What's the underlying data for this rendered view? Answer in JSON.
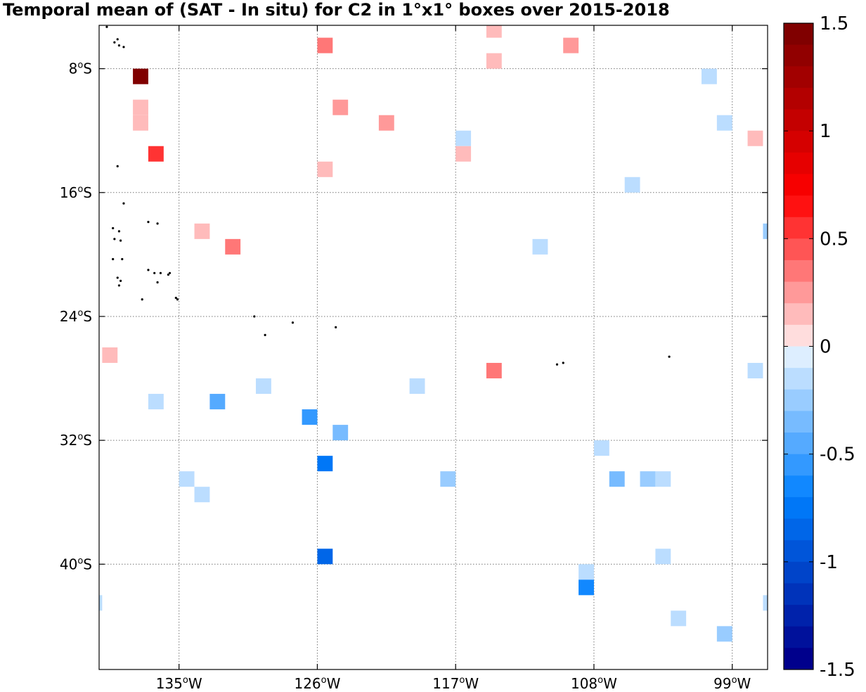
{
  "chart_data": {
    "type": "heatmap",
    "title": "Temporal mean of (SAT - In situ) for C2 in 1°x1° boxes over 2015-2018",
    "x_ticks": [
      {
        "value": -135,
        "label": "135",
        "suffix": "W"
      },
      {
        "value": -126,
        "label": "126",
        "suffix": "W"
      },
      {
        "value": -117,
        "label": "117",
        "suffix": "W"
      },
      {
        "value": -108,
        "label": "108",
        "suffix": "W"
      },
      {
        "value": -99,
        "label": "99",
        "suffix": "W"
      }
    ],
    "y_ticks": [
      {
        "value": -8,
        "label": "8",
        "suffix": "S"
      },
      {
        "value": -16,
        "label": "16",
        "suffix": "S"
      },
      {
        "value": -24,
        "label": "24",
        "suffix": "S"
      },
      {
        "value": -32,
        "label": "32",
        "suffix": "S"
      },
      {
        "value": -40,
        "label": "40",
        "suffix": "S"
      }
    ],
    "xlim": [
      -140.2,
      -96.7
    ],
    "ylim": [
      -46.8,
      -5.2
    ],
    "grid": true,
    "colorbar": {
      "min": -1.5,
      "max": 1.5,
      "step": 0.1,
      "tick_values": [
        1.5,
        1,
        0.5,
        0,
        -0.5,
        -1,
        -1.5
      ],
      "tick_labels": [
        "1.5",
        "1",
        "0.5",
        "0",
        "-0.5",
        "-1",
        "-1.5"
      ]
    },
    "cells": [
      {
        "lon": -114.5,
        "lat": -5.5,
        "value": 0.15
      },
      {
        "lon": -125.5,
        "lat": -6.5,
        "value": 0.35
      },
      {
        "lon": -109.5,
        "lat": -6.5,
        "value": 0.25
      },
      {
        "lon": -114.5,
        "lat": -7.5,
        "value": 0.15
      },
      {
        "lon": -137.5,
        "lat": -8.5,
        "value": 1.5
      },
      {
        "lon": -100.5,
        "lat": -8.5,
        "value": -0.15
      },
      {
        "lon": -137.5,
        "lat": -10.5,
        "value": 0.15
      },
      {
        "lon": -124.5,
        "lat": -10.5,
        "value": 0.25
      },
      {
        "lon": -137.5,
        "lat": -11.5,
        "value": 0.15
      },
      {
        "lon": -121.5,
        "lat": -11.5,
        "value": 0.25
      },
      {
        "lon": -99.5,
        "lat": -11.5,
        "value": -0.2
      },
      {
        "lon": -116.5,
        "lat": -12.5,
        "value": -0.15
      },
      {
        "lon": -97.5,
        "lat": -12.5,
        "value": 0.2
      },
      {
        "lon": -136.5,
        "lat": -13.5,
        "value": 0.55
      },
      {
        "lon": -116.5,
        "lat": -13.5,
        "value": 0.2
      },
      {
        "lon": -125.5,
        "lat": -14.5,
        "value": 0.15
      },
      {
        "lon": -105.5,
        "lat": -15.5,
        "value": -0.15
      },
      {
        "lon": -96.5,
        "lat": -18.5,
        "value": -0.25
      },
      {
        "lon": -133.5,
        "lat": -18.5,
        "value": 0.2
      },
      {
        "lon": -131.5,
        "lat": -19.5,
        "value": 0.35
      },
      {
        "lon": -111.5,
        "lat": -19.5,
        "value": -0.15
      },
      {
        "lon": -139.5,
        "lat": -26.5,
        "value": 0.2
      },
      {
        "lon": -97.5,
        "lat": -27.5,
        "value": -0.15
      },
      {
        "lon": -114.5,
        "lat": -27.5,
        "value": 0.35
      },
      {
        "lon": -129.5,
        "lat": -28.5,
        "value": -0.15
      },
      {
        "lon": -119.5,
        "lat": -28.5,
        "value": -0.15
      },
      {
        "lon": -136.5,
        "lat": -29.5,
        "value": -0.15
      },
      {
        "lon": -132.5,
        "lat": -29.5,
        "value": -0.45
      },
      {
        "lon": -126.5,
        "lat": -30.5,
        "value": -0.55
      },
      {
        "lon": -124.5,
        "lat": -31.5,
        "value": -0.4
      },
      {
        "lon": -107.5,
        "lat": -32.5,
        "value": -0.15
      },
      {
        "lon": -125.5,
        "lat": -33.5,
        "value": -0.75
      },
      {
        "lon": -134.5,
        "lat": -34.5,
        "value": -0.15
      },
      {
        "lon": -117.5,
        "lat": -34.5,
        "value": -0.3
      },
      {
        "lon": -106.5,
        "lat": -34.5,
        "value": -0.35
      },
      {
        "lon": -104.5,
        "lat": -34.5,
        "value": -0.3
      },
      {
        "lon": -103.5,
        "lat": -34.5,
        "value": -0.15
      },
      {
        "lon": -133.5,
        "lat": -35.5,
        "value": -0.15
      },
      {
        "lon": -125.5,
        "lat": -39.5,
        "value": -0.85
      },
      {
        "lon": -103.5,
        "lat": -39.5,
        "value": -0.15
      },
      {
        "lon": -108.5,
        "lat": -40.5,
        "value": -0.15
      },
      {
        "lon": -108.5,
        "lat": -41.5,
        "value": -0.65
      },
      {
        "lon": -140.5,
        "lat": -42.5,
        "value": -0.15
      },
      {
        "lon": -96.5,
        "lat": -42.5,
        "value": -0.15
      },
      {
        "lon": -102.5,
        "lat": -43.5,
        "value": -0.15
      },
      {
        "lon": -99.5,
        "lat": -44.5,
        "value": -0.3
      }
    ],
    "islands": [
      [
        -139.7,
        -5.3
      ],
      [
        -139.2,
        -6.3
      ],
      [
        -139.0,
        -6.1
      ],
      [
        -138.9,
        -6.5
      ],
      [
        -138.6,
        -6.6
      ],
      [
        -139.0,
        -14.3
      ],
      [
        -138.6,
        -16.7
      ],
      [
        -137.0,
        -17.9
      ],
      [
        -136.4,
        -18.0
      ],
      [
        -139.3,
        -18.3
      ],
      [
        -138.9,
        -18.5
      ],
      [
        -139.2,
        -19.0
      ],
      [
        -138.8,
        -19.1
      ],
      [
        -139.3,
        -20.3
      ],
      [
        -138.7,
        -20.3
      ],
      [
        -137.0,
        -21.0
      ],
      [
        -136.6,
        -21.2
      ],
      [
        -136.2,
        -21.2
      ],
      [
        -135.6,
        -21.2
      ],
      [
        -135.7,
        -21.3
      ],
      [
        -139.0,
        -21.5
      ],
      [
        -138.8,
        -21.7
      ],
      [
        -136.4,
        -21.8
      ],
      [
        -138.9,
        -22.0
      ],
      [
        -137.4,
        -22.9
      ],
      [
        -135.2,
        -22.8
      ],
      [
        -135.1,
        -22.9
      ],
      [
        -130.1,
        -24.0
      ],
      [
        -127.6,
        -24.4
      ],
      [
        -124.8,
        -24.7
      ],
      [
        -129.4,
        -25.2
      ],
      [
        -110.4,
        -27.1
      ],
      [
        -110.0,
        -27.0
      ],
      [
        -103.1,
        -26.6
      ]
    ]
  }
}
